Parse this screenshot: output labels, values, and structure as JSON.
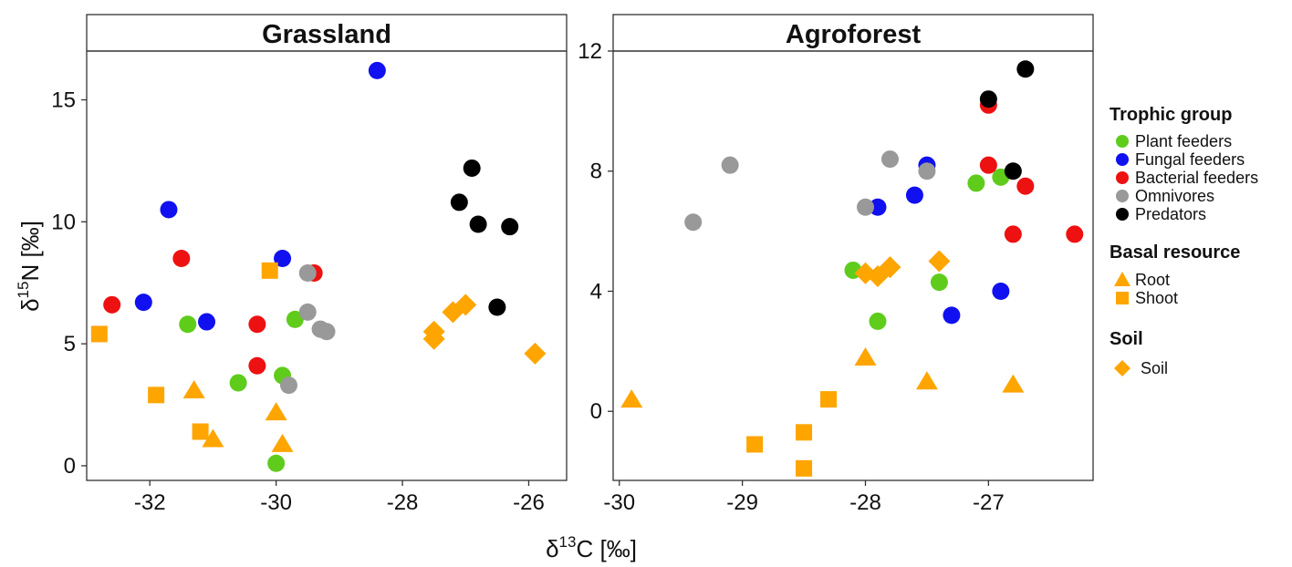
{
  "colors": {
    "plant_feeders": "#5fcc1c",
    "fungal_feeders": "#1010f0",
    "bacterial_feeders": "#ee1111",
    "omnivores": "#999999",
    "predators": "#000000",
    "basal": "#ffa500"
  },
  "xlabel_prefix": "δ",
  "xlabel_sup": "13",
  "xlabel_rest": "C [‰]",
  "ylabel_prefix": "δ",
  "ylabel_sup": "15",
  "ylabel_rest": "N [‰]",
  "legend": {
    "trophic_title": "Trophic group",
    "trophic_items": [
      {
        "label": "Plant feeders",
        "color": "#5fcc1c"
      },
      {
        "label": "Fungal feeders",
        "color": "#1010f0"
      },
      {
        "label": "Bacterial feeders",
        "color": "#ee1111"
      },
      {
        "label": "Omnivores",
        "color": "#999999"
      },
      {
        "label": "Predators",
        "color": "#000000"
      }
    ],
    "basal_title": "Basal resource",
    "basal_items": [
      {
        "label": "Root",
        "shape": "triangle"
      },
      {
        "label": "Shoot",
        "shape": "square"
      }
    ],
    "soil_title": "Soil",
    "soil_items": [
      {
        "label": "Soil",
        "shape": "diamond"
      }
    ]
  },
  "chart_data": [
    {
      "type": "scatter",
      "title": "Grassland",
      "xlim": [
        -33.0,
        -25.4
      ],
      "ylim": [
        -0.6,
        17.0
      ],
      "xticks": [
        -32,
        -30,
        -28,
        -26
      ],
      "xtick_labels": [
        "-32",
        "-30",
        "-28",
        "-26"
      ],
      "yticks": [
        0,
        5,
        10,
        15
      ],
      "ytick_labels": [
        "0",
        "5",
        "10",
        "15"
      ],
      "series": [
        {
          "name": "Plant feeders",
          "shape": "circle",
          "color": "#5fcc1c",
          "points": [
            [
              -31.4,
              5.8
            ],
            [
              -30.6,
              3.4
            ],
            [
              -29.7,
              6.0
            ],
            [
              -29.9,
              3.7
            ],
            [
              -30.0,
              0.1
            ]
          ]
        },
        {
          "name": "Fungal feeders",
          "shape": "circle",
          "color": "#1010f0",
          "points": [
            [
              -28.4,
              16.2
            ],
            [
              -31.7,
              10.5
            ],
            [
              -29.9,
              8.5
            ],
            [
              -32.1,
              6.7
            ],
            [
              -31.1,
              5.9
            ]
          ]
        },
        {
          "name": "Bacterial feeders",
          "shape": "circle",
          "color": "#ee1111",
          "points": [
            [
              -31.5,
              8.5
            ],
            [
              -29.4,
              7.9
            ],
            [
              -32.6,
              6.6
            ],
            [
              -30.3,
              5.8
            ],
            [
              -30.3,
              4.1
            ]
          ]
        },
        {
          "name": "Omnivores",
          "shape": "circle",
          "color": "#999999",
          "points": [
            [
              -29.5,
              7.9
            ],
            [
              -29.5,
              6.3
            ],
            [
              -29.3,
              5.6
            ],
            [
              -29.2,
              5.5
            ],
            [
              -29.8,
              3.3
            ]
          ]
        },
        {
          "name": "Predators",
          "shape": "circle",
          "color": "#000000",
          "points": [
            [
              -26.9,
              12.2
            ],
            [
              -27.1,
              10.8
            ],
            [
              -26.8,
              9.9
            ],
            [
              -26.3,
              9.8
            ],
            [
              -26.5,
              6.5
            ]
          ]
        },
        {
          "name": "Root",
          "shape": "triangle",
          "color": "#ffa500",
          "points": [
            [
              -31.3,
              3.1
            ],
            [
              -30.0,
              2.2
            ],
            [
              -29.9,
              0.9
            ],
            [
              -31.0,
              1.1
            ]
          ]
        },
        {
          "name": "Shoot",
          "shape": "square",
          "color": "#ffa500",
          "points": [
            [
              -32.8,
              5.4
            ],
            [
              -31.9,
              2.9
            ],
            [
              -30.1,
              8.0
            ],
            [
              -31.2,
              1.4
            ]
          ]
        },
        {
          "name": "Soil",
          "shape": "diamond",
          "color": "#ffa500",
          "points": [
            [
              -27.5,
              5.5
            ],
            [
              -27.5,
              5.2
            ],
            [
              -27.2,
              6.3
            ],
            [
              -27.0,
              6.6
            ],
            [
              -25.9,
              4.6
            ]
          ]
        }
      ]
    },
    {
      "type": "scatter",
      "title": "Agroforest",
      "xlim": [
        -30.05,
        -26.15
      ],
      "ylim": [
        -2.3,
        12.0
      ],
      "xticks": [
        -30,
        -29,
        -28,
        -27
      ],
      "xtick_labels": [
        "-30",
        "-29",
        "-28",
        "-27"
      ],
      "yticks": [
        0,
        4,
        8,
        12
      ],
      "ytick_labels": [
        "0",
        "4",
        "8",
        "12"
      ],
      "series": [
        {
          "name": "Plant feeders",
          "shape": "circle",
          "color": "#5fcc1c",
          "points": [
            [
              -28.1,
              4.7
            ],
            [
              -27.9,
              3.0
            ],
            [
              -27.4,
              4.3
            ],
            [
              -27.1,
              7.6
            ],
            [
              -26.9,
              7.8
            ]
          ]
        },
        {
          "name": "Fungal feeders",
          "shape": "circle",
          "color": "#1010f0",
          "points": [
            [
              -27.9,
              6.8
            ],
            [
              -27.6,
              7.2
            ],
            [
              -27.5,
              8.2
            ],
            [
              -27.3,
              3.2
            ],
            [
              -26.9,
              4.0
            ]
          ]
        },
        {
          "name": "Bacterial feeders",
          "shape": "circle",
          "color": "#ee1111",
          "points": [
            [
              -27.0,
              10.2
            ],
            [
              -27.0,
              8.2
            ],
            [
              -26.7,
              7.5
            ],
            [
              -26.8,
              5.9
            ],
            [
              -26.3,
              5.9
            ]
          ]
        },
        {
          "name": "Omnivores",
          "shape": "circle",
          "color": "#999999",
          "points": [
            [
              -29.4,
              6.3
            ],
            [
              -29.1,
              8.2
            ],
            [
              -28.0,
              6.8
            ],
            [
              -27.8,
              8.4
            ],
            [
              -27.5,
              8.0
            ]
          ]
        },
        {
          "name": "Predators",
          "shape": "circle",
          "color": "#000000",
          "points": [
            [
              -27.0,
              10.4
            ],
            [
              -26.7,
              11.4
            ],
            [
              -26.8,
              8.0
            ]
          ]
        },
        {
          "name": "Root",
          "shape": "triangle",
          "color": "#ffa500",
          "points": [
            [
              -29.9,
              0.4
            ],
            [
              -28.0,
              1.8
            ],
            [
              -27.5,
              1.0
            ],
            [
              -26.8,
              0.9
            ]
          ]
        },
        {
          "name": "Shoot",
          "shape": "square",
          "color": "#ffa500",
          "points": [
            [
              -28.9,
              -1.1
            ],
            [
              -28.5,
              -0.7
            ],
            [
              -28.5,
              -1.9
            ],
            [
              -28.3,
              0.4
            ]
          ]
        },
        {
          "name": "Soil",
          "shape": "diamond",
          "color": "#ffa500",
          "points": [
            [
              -28.0,
              4.6
            ],
            [
              -27.9,
              4.5
            ],
            [
              -27.8,
              4.8
            ],
            [
              -27.4,
              5.0
            ]
          ]
        }
      ]
    }
  ]
}
